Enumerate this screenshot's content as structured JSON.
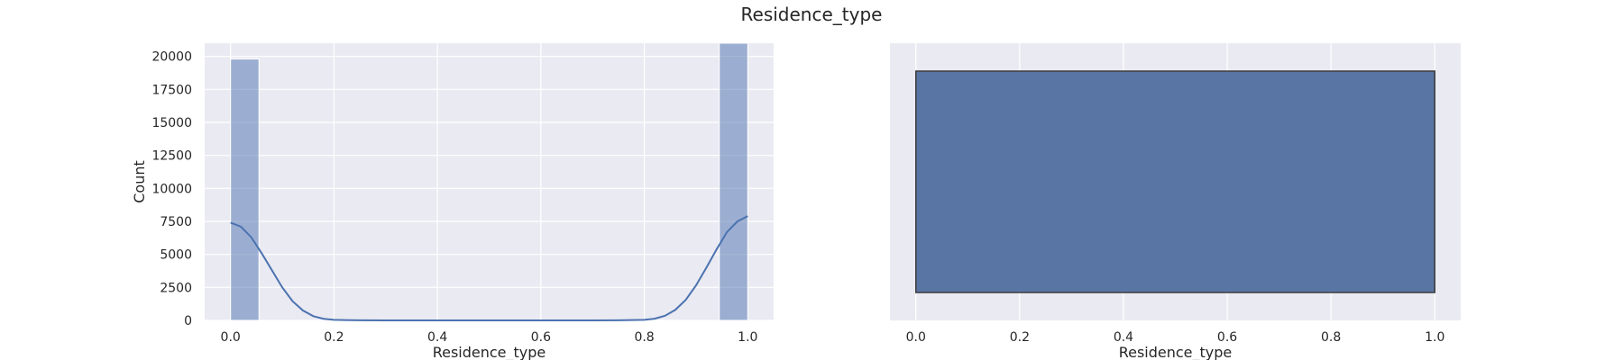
{
  "figure": {
    "title": "Residence_type"
  },
  "style": {
    "panel_bg": "#eaeaf2",
    "grid_color": "#ffffff",
    "bar_color": "#4c72b0",
    "bar_alpha": 0.5,
    "kde_color": "#4c72b0",
    "box_fill": "#5975a4",
    "box_edge": "#3d3d3d",
    "text_color": "#262626"
  },
  "chart_data": [
    {
      "type": "bar",
      "subtype": "histogram_with_kde",
      "title": "",
      "xlabel": "Residence_type",
      "ylabel": "Count",
      "xlim": [
        -0.05,
        1.05
      ],
      "ylim": [
        0,
        21000
      ],
      "xticks": [
        0.0,
        0.2,
        0.4,
        0.6,
        0.8,
        1.0
      ],
      "xtick_labels": [
        "0.0",
        "0.2",
        "0.4",
        "0.6",
        "0.8",
        "1.0"
      ],
      "yticks": [
        0,
        2500,
        5000,
        7500,
        10000,
        12500,
        15000,
        17500,
        20000
      ],
      "ytick_labels": [
        "0",
        "2500",
        "5000",
        "7500",
        "10000",
        "12500",
        "15000",
        "17500",
        "20000"
      ],
      "grid": true,
      "bins": [
        {
          "x0": 0.0,
          "x1": 0.055,
          "count": 19800
        },
        {
          "x0": 0.945,
          "x1": 1.0,
          "count": 21000
        }
      ],
      "kde": {
        "x": [
          0.0,
          0.02,
          0.04,
          0.06,
          0.08,
          0.1,
          0.12,
          0.14,
          0.16,
          0.18,
          0.2,
          0.25,
          0.3,
          0.4,
          0.5,
          0.6,
          0.7,
          0.75,
          0.8,
          0.82,
          0.84,
          0.86,
          0.88,
          0.9,
          0.92,
          0.94,
          0.96,
          0.98,
          1.0
        ],
        "y": [
          7400,
          7100,
          6300,
          5100,
          3800,
          2500,
          1450,
          750,
          320,
          120,
          40,
          5,
          0,
          0,
          0,
          0,
          0,
          5,
          40,
          130,
          350,
          800,
          1550,
          2650,
          4000,
          5400,
          6700,
          7500,
          7900
        ]
      }
    },
    {
      "type": "box",
      "title": "",
      "xlabel": "Residence_type",
      "ylabel": "",
      "xlim": [
        -0.05,
        1.05
      ],
      "xticks": [
        0.0,
        0.2,
        0.4,
        0.6,
        0.8,
        1.0
      ],
      "xtick_labels": [
        "0.0",
        "0.2",
        "0.4",
        "0.6",
        "0.8",
        "1.0"
      ],
      "grid": true,
      "q1": 0.0,
      "median": 1.0,
      "q3": 1.0,
      "whisker_low": 0.0,
      "whisker_high": 1.0
    }
  ]
}
